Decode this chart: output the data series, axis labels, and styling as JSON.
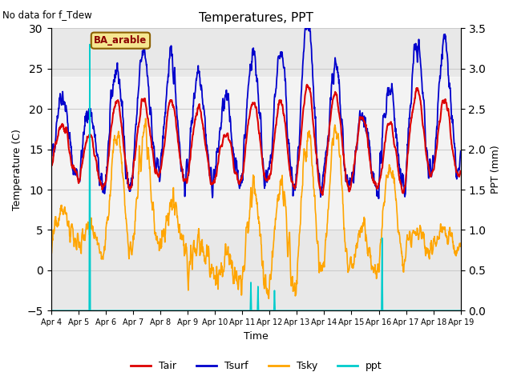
{
  "title": "Temperatures, PPT",
  "subtitle": "No data for f_Tdew",
  "xlabel": "Time",
  "ylabel_left": "Temperature (C)",
  "ylabel_right": "PPT (mm)",
  "station_label": "BA_arable",
  "ylim_left": [
    -5,
    30
  ],
  "ylim_right": [
    0.0,
    3.5
  ],
  "yticks_left": [
    -5,
    0,
    5,
    10,
    15,
    20,
    25,
    30
  ],
  "yticks_right": [
    0.0,
    0.5,
    1.0,
    1.5,
    2.0,
    2.5,
    3.0,
    3.5
  ],
  "shaded_band_low": 5,
  "shaded_band_high": 24,
  "grid_color": "#cccccc",
  "bg_color": "#e8e8e8",
  "tair_color": "#dd0000",
  "tsurf_color": "#0000cc",
  "tsky_color": "#ffa500",
  "ppt_color": "#00cccc",
  "legend_labels": [
    "Tair",
    "Tsurf",
    "Tsky",
    "ppt"
  ],
  "n_days": 15,
  "xtick_labels": [
    "Apr 4",
    "Apr 5",
    "Apr 6",
    "Apr 7",
    "Apr 8",
    "Apr 9",
    "Apr 10",
    "Apr 11",
    "Apr 12",
    "Apr 13",
    "Apr 14",
    "Apr 15",
    "Apr 16",
    "Apr 17",
    "Apr 18",
    "Apr 19"
  ],
  "fig_width": 6.4,
  "fig_height": 4.8
}
